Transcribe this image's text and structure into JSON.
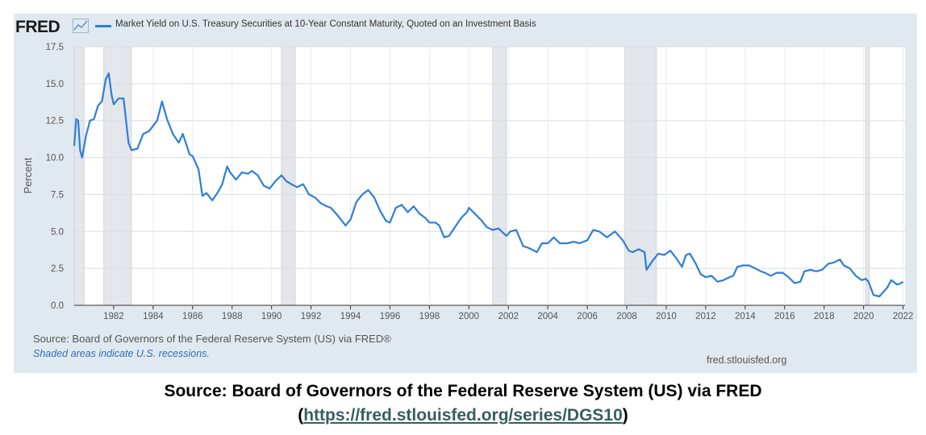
{
  "header": {
    "logo": "FRED",
    "logo_icon": "line-chart-icon",
    "legend_label": "Market Yield on U.S. Treasury Securities at 10-Year Constant Maturity, Quoted on an Investment Basis"
  },
  "footer": {
    "source": "Source: Board of Governors of the Federal Reserve System (US) via FRED®",
    "shaded_note": "Shaded areas indicate U.S. recessions.",
    "site": "fred.stlouisfed.org"
  },
  "caption": {
    "line1": "Source: Board of Governors of the Federal Reserve System (US) via FRED",
    "open_paren": "(",
    "link": "https://fred.stlouisfed.org/series/DGS10",
    "close_paren": ")"
  },
  "colors": {
    "line": "#2f7ed8",
    "panel": "#e1e9f0",
    "plot_bg": "#ffffff",
    "recession": "#e3e6ea"
  },
  "chart_data": {
    "type": "line",
    "ylabel": "Percent",
    "ylim": [
      0,
      17.5
    ],
    "xlim": [
      1980.0,
      2022.1
    ],
    "yticks": [
      0.0,
      2.5,
      5.0,
      7.5,
      10.0,
      12.5,
      15.0,
      17.5
    ],
    "ytick_labels": [
      "0.0",
      "2.5",
      "5.0",
      "7.5",
      "10.0",
      "12.5",
      "15.0",
      "17.5"
    ],
    "xticks": [
      1982,
      1984,
      1986,
      1988,
      1990,
      1992,
      1994,
      1996,
      1998,
      2000,
      2002,
      2004,
      2006,
      2008,
      2010,
      2012,
      2014,
      2016,
      2018,
      2020,
      2022
    ],
    "grid": true,
    "legend": "top-left",
    "recessions": [
      [
        1980.0,
        1980.5
      ],
      [
        1981.5,
        1982.9
      ],
      [
        1990.5,
        1991.2
      ],
      [
        2001.2,
        2001.9
      ],
      [
        2007.9,
        2009.5
      ],
      [
        2020.1,
        2020.3
      ]
    ],
    "series": [
      {
        "name": "Market Yield on U.S. Treasury Securities at 10-Year Constant Maturity, Quoted on an Investment Basis",
        "x": [
          1980.0,
          1980.1,
          1980.2,
          1980.3,
          1980.4,
          1980.6,
          1980.8,
          1981.0,
          1981.2,
          1981.4,
          1981.6,
          1981.75,
          1981.9,
          1982.0,
          1982.25,
          1982.5,
          1982.75,
          1982.9,
          1983.2,
          1983.5,
          1983.8,
          1984.2,
          1984.45,
          1984.7,
          1985.0,
          1985.3,
          1985.5,
          1985.7,
          1985.85,
          1986.0,
          1986.3,
          1986.5,
          1986.7,
          1987.0,
          1987.3,
          1987.5,
          1987.75,
          1987.9,
          1988.2,
          1988.5,
          1988.8,
          1989.0,
          1989.3,
          1989.6,
          1989.9,
          1990.2,
          1990.5,
          1990.75,
          1991.0,
          1991.3,
          1991.6,
          1991.9,
          1992.2,
          1992.5,
          1992.8,
          1993.0,
          1993.4,
          1993.75,
          1994.0,
          1994.3,
          1994.6,
          1994.9,
          1995.2,
          1995.5,
          1995.8,
          1996.0,
          1996.3,
          1996.6,
          1996.9,
          1997.2,
          1997.5,
          1997.8,
          1998.0,
          1998.3,
          1998.5,
          1998.75,
          1999.0,
          1999.3,
          1999.6,
          1999.9,
          2000.0,
          2000.3,
          2000.6,
          2000.9,
          2001.2,
          2001.5,
          2001.9,
          2002.1,
          2002.4,
          2002.75,
          2003.0,
          2003.45,
          2003.7,
          2004.0,
          2004.3,
          2004.6,
          2005.0,
          2005.3,
          2005.6,
          2006.0,
          2006.3,
          2006.6,
          2007.0,
          2007.4,
          2007.8,
          2008.1,
          2008.3,
          2008.6,
          2008.9,
          2009.0,
          2009.3,
          2009.6,
          2009.9,
          2010.2,
          2010.5,
          2010.8,
          2011.0,
          2011.2,
          2011.5,
          2011.75,
          2012.0,
          2012.3,
          2012.6,
          2012.9,
          2013.2,
          2013.4,
          2013.6,
          2013.9,
          2014.2,
          2014.5,
          2014.8,
          2015.0,
          2015.3,
          2015.6,
          2015.9,
          2016.2,
          2016.5,
          2016.8,
          2017.0,
          2017.3,
          2017.6,
          2017.9,
          2018.2,
          2018.5,
          2018.8,
          2019.0,
          2019.3,
          2019.6,
          2019.9,
          2020.1,
          2020.25,
          2020.5,
          2020.8,
          2021.0,
          2021.2,
          2021.4,
          2021.7,
          2021.9,
          2022.0
        ],
        "y": [
          10.8,
          12.6,
          12.5,
          10.5,
          10.0,
          11.5,
          12.5,
          12.6,
          13.5,
          13.8,
          15.3,
          15.7,
          14.2,
          13.6,
          14.0,
          14.0,
          11.0,
          10.5,
          10.6,
          11.6,
          11.8,
          12.5,
          13.8,
          12.6,
          11.6,
          11.0,
          11.6,
          10.8,
          10.2,
          10.1,
          9.2,
          7.4,
          7.6,
          7.1,
          7.7,
          8.2,
          9.4,
          9.0,
          8.5,
          9.0,
          8.9,
          9.1,
          8.8,
          8.1,
          7.9,
          8.4,
          8.8,
          8.4,
          8.2,
          8.0,
          8.2,
          7.5,
          7.3,
          6.9,
          6.7,
          6.6,
          6.0,
          5.4,
          5.8,
          7.0,
          7.5,
          7.8,
          7.3,
          6.4,
          5.7,
          5.6,
          6.6,
          6.8,
          6.3,
          6.7,
          6.2,
          5.9,
          5.6,
          5.6,
          5.4,
          4.6,
          4.7,
          5.3,
          5.9,
          6.3,
          6.6,
          6.2,
          5.8,
          5.3,
          5.1,
          5.2,
          4.7,
          5.0,
          5.1,
          4.0,
          3.9,
          3.6,
          4.2,
          4.2,
          4.6,
          4.2,
          4.2,
          4.3,
          4.2,
          4.4,
          5.1,
          5.0,
          4.6,
          5.0,
          4.4,
          3.7,
          3.6,
          3.8,
          3.6,
          2.4,
          3.0,
          3.5,
          3.4,
          3.7,
          3.2,
          2.6,
          3.4,
          3.5,
          2.8,
          2.1,
          1.9,
          2.0,
          1.6,
          1.7,
          1.9,
          2.0,
          2.6,
          2.7,
          2.7,
          2.5,
          2.3,
          2.2,
          2.0,
          2.2,
          2.2,
          1.9,
          1.5,
          1.6,
          2.3,
          2.4,
          2.3,
          2.4,
          2.8,
          2.9,
          3.1,
          2.7,
          2.5,
          2.0,
          1.7,
          1.8,
          1.6,
          0.7,
          0.6,
          0.9,
          1.2,
          1.7,
          1.4,
          1.5,
          1.6
        ],
        "color": "#2f7ed8"
      }
    ]
  }
}
